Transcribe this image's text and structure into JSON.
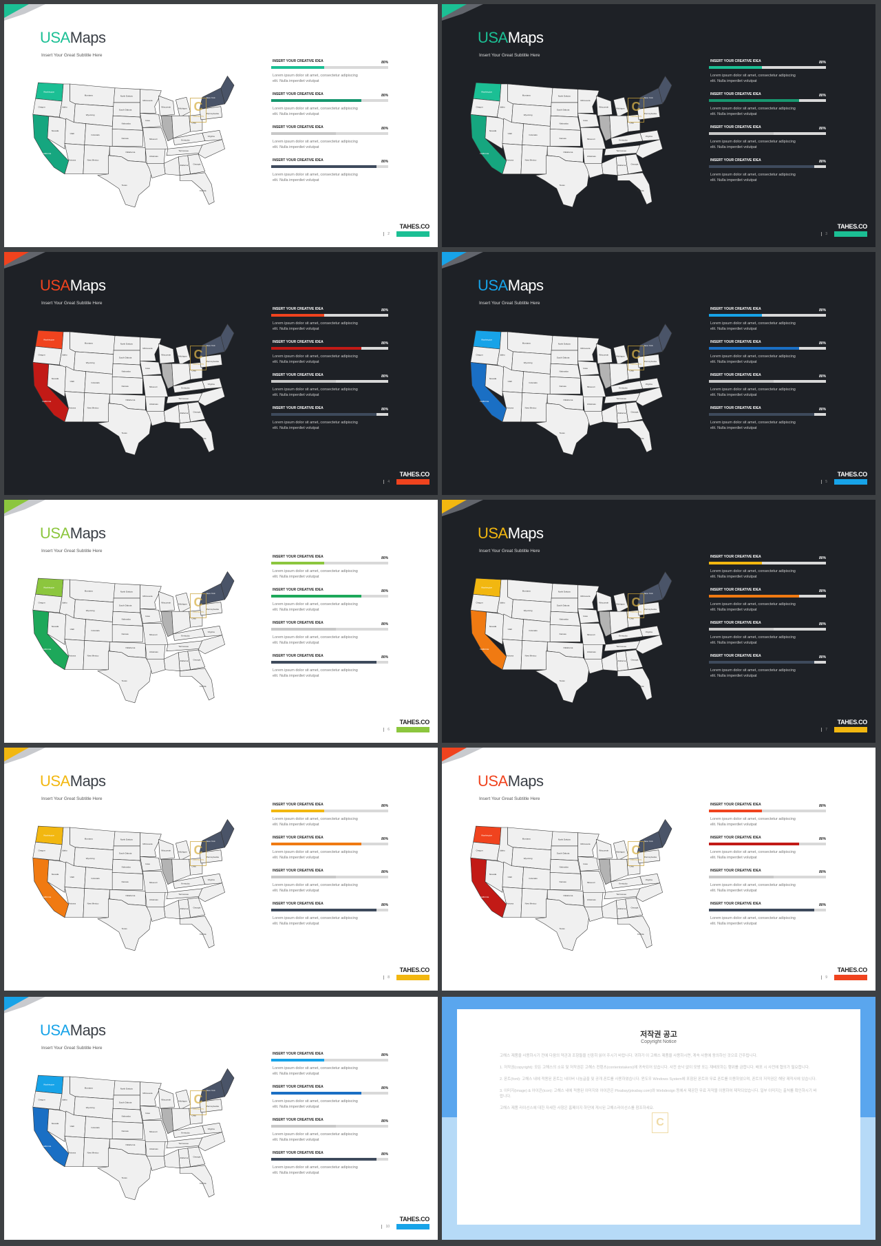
{
  "slides": [
    {
      "page": "2",
      "theme": "light",
      "accent": "#1bbf94",
      "accent2": "#1a9b77",
      "corner": "#1bbf94",
      "wa": "#1bbf94",
      "ca": "#16a67f",
      "bar_colors": [
        "#1bbf94",
        "#17976f",
        "#c8c8c8",
        "#3e4a5c"
      ],
      "fills": [
        0.45,
        0.77,
        0.55,
        0.9
      ]
    },
    {
      "page": "3",
      "theme": "dark",
      "accent": "#1bbf94",
      "accent2": "#1a9b77",
      "corner": "#1bbf94",
      "wa": "#1bbf94",
      "ca": "#16a67f",
      "bar_colors": [
        "#1bbf94",
        "#17976f",
        "#c8c8c8",
        "#3e4a5c"
      ],
      "fills": [
        0.45,
        0.77,
        0.55,
        0.9
      ]
    },
    {
      "page": "4",
      "theme": "dark",
      "accent": "#f0431e",
      "accent2": "#c21a16",
      "corner": "#f0431e",
      "wa": "#f0431e",
      "ca": "#c21a16",
      "bar_colors": [
        "#f0431e",
        "#c21a16",
        "#c8c8c8",
        "#3e4a5c"
      ],
      "fills": [
        0.45,
        0.77,
        0.55,
        0.9
      ]
    },
    {
      "page": "5",
      "theme": "dark",
      "accent": "#17a3e8",
      "accent2": "#1a6fc4",
      "corner": "#17a3e8",
      "wa": "#17a3e8",
      "ca": "#1a6fc4",
      "bar_colors": [
        "#17a3e8",
        "#1a6fc4",
        "#c8c8c8",
        "#3e4a5c"
      ],
      "fills": [
        0.45,
        0.77,
        0.55,
        0.9
      ]
    },
    {
      "page": "6",
      "theme": "light",
      "accent": "#8cc63e",
      "accent2": "#1da85a",
      "corner": "#8cc63e",
      "wa": "#8cc63e",
      "ca": "#1da85a",
      "bar_colors": [
        "#8cc63e",
        "#1da85a",
        "#c8c8c8",
        "#3e4a5c"
      ],
      "fills": [
        0.45,
        0.77,
        0.55,
        0.9
      ]
    },
    {
      "page": "7",
      "theme": "dark",
      "accent": "#f2b710",
      "accent2": "#f07a12",
      "corner": "#f2b710",
      "wa": "#f2b710",
      "ca": "#f07a12",
      "bar_colors": [
        "#f2b710",
        "#f07a12",
        "#c8c8c8",
        "#3e4a5c"
      ],
      "fills": [
        0.45,
        0.77,
        0.55,
        0.9
      ]
    },
    {
      "page": "8",
      "theme": "light",
      "accent": "#f2b710",
      "accent2": "#f07a12",
      "corner": "#f2b710",
      "wa": "#f2b710",
      "ca": "#f07a12",
      "bar_colors": [
        "#f2b710",
        "#f07a12",
        "#c8c8c8",
        "#3e4a5c"
      ],
      "fills": [
        0.45,
        0.77,
        0.55,
        0.9
      ]
    },
    {
      "page": "9",
      "theme": "light",
      "accent": "#f0431e",
      "accent2": "#c21a16",
      "corner": "#f0431e",
      "wa": "#f0431e",
      "ca": "#c21a16",
      "bar_colors": [
        "#f0431e",
        "#c21a16",
        "#c8c8c8",
        "#3e4a5c"
      ],
      "fills": [
        0.45,
        0.77,
        0.55,
        0.9
      ]
    },
    {
      "page": "10",
      "theme": "light",
      "accent": "#17a3e8",
      "accent2": "#1a6fc4",
      "corner": "#17a3e8",
      "wa": "#17a3e8",
      "ca": "#1a6fc4",
      "bar_colors": [
        "#17a3e8",
        "#1a6fc4",
        "#c8c8c8",
        "#3e4a5c"
      ],
      "fills": [
        0.45,
        0.77,
        0.55,
        0.9
      ]
    }
  ],
  "common": {
    "title_usa": "USA",
    "title_maps": "Maps",
    "subtitle": "Insert Your Great Subtitle Here",
    "bar_label": "INSERT YOUR CREATIVE IDEA",
    "bar_pct": "80%",
    "bar_desc_1": "Lorem ipsum dolor sit amet, consectetur adipiscing",
    "bar_desc_2": "elit. Nulla imperdiet volutpat",
    "brand": "TAHES.CO",
    "state_labels": {
      "washington": "Washington",
      "oregon": "Oregon",
      "california": "California",
      "nevada": "Nevada",
      "montana": "Montana",
      "north_dakota": "North Dakota",
      "south_dakota": "South Dakota",
      "wyoming": "Wyoming",
      "nebraska": "Nebraska",
      "utah": "Utah",
      "colorado": "Colorado",
      "kansas": "Kansas",
      "arizona": "Arizona",
      "new_mexico": "New Mexico",
      "texas": "Texas",
      "oklahoma": "Oklahoma",
      "minnesota": "Minnesota",
      "iowa": "Iowa",
      "missouri": "Missouri",
      "arkansas": "Arkansas",
      "wisconsin": "Wisconsin",
      "michigan": "Michigan",
      "illinois": "Illinois",
      "ohio": "Ohio",
      "kentucky": "Kentucky",
      "tennessee": "Tennessee",
      "alabama": "Alabama",
      "georgia": "Georgia",
      "florida": "Florida",
      "new_york": "New York",
      "pennsylvania": "Pennsylvania",
      "idaho": "Idaho",
      "virginia": "Virginia"
    },
    "watermark": "C",
    "watermark_sub": "CONTENTS"
  },
  "copyright": {
    "title": "저작권 공고",
    "subtitle": "Copyright Notice",
    "p0": "고해스 제품을 사용하시기 전에 다음의 약관과 조항들을 신중히 읽어 주시기 바랍니다. 귀하가 이 고해스 제품을 사용하시면, 계속 사용에 동의하신 것으로 간주됩니다.",
    "p1": "1. 저작권(copyright): 모든 고해스의 소유 및 저작권은 고해스 컨텐츠(contentstakers)에 귀속되어 있습니다. 사전 승낙 없이 모방 또는 재배포하는 행위를 금합니다. 배포 시 사전에 협의가 필요합니다.",
    "p2": "2. 폰트(font): 고해스 내에 적용된 폰트는 네이버 나눔글꼴 및 공개 폰트를 사용하였습니다. 윈도우 Windows System에 포함된 폰트와 무료 폰트를 이용하였으며, 폰트의 저작권은 해당 제작사에 있습니다.",
    "p3": "3. 이미지(image) & 아이콘(icon): 고해스 내에 적용된 이미지와 아이콘은 Pixabay(pixabay.com)와 Webdesign 등에서 제공한 무료 저작물 이용하여 제작되었습니다. 일부 이미지는 출처를 확인하시기 바랍니다.",
    "p4": "고해스 제품 라이선스에 대한 자세한 사항은 홈페이지 하단에 게시된 고해스라이선스를 참조하세요."
  }
}
